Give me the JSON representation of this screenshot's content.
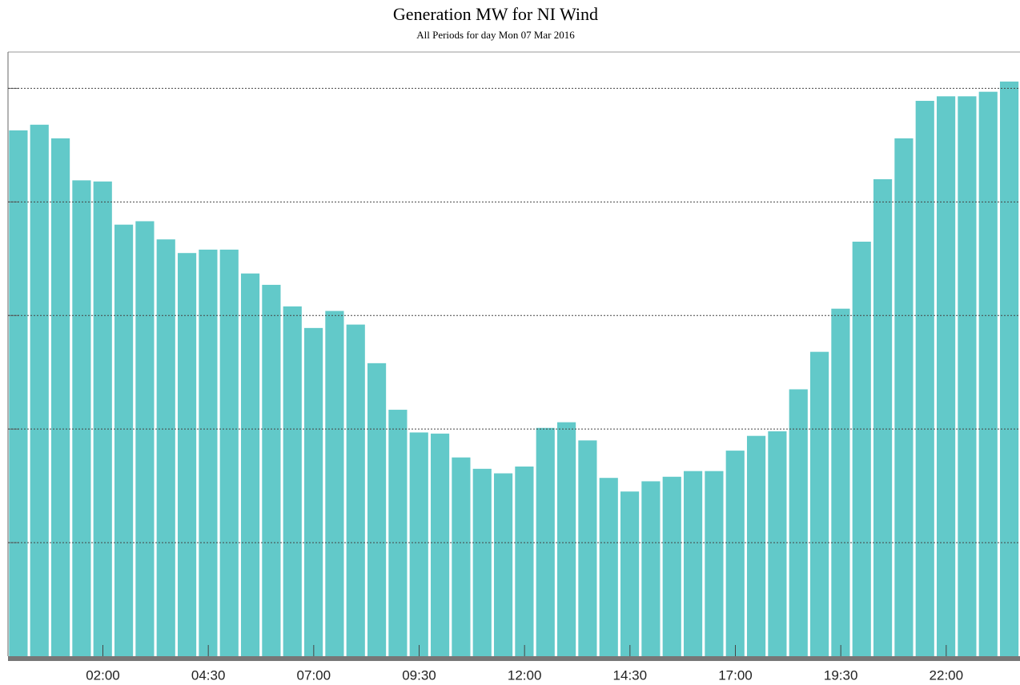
{
  "chart_data": {
    "type": "bar",
    "title": "Generation MW for NI Wind",
    "subtitle": "All Periods for day Mon 07 Mar 2016",
    "categories": [
      null,
      null,
      null,
      null,
      "02:00",
      null,
      null,
      null,
      null,
      "04:30",
      null,
      null,
      null,
      null,
      "07:00",
      null,
      null,
      null,
      null,
      "09:30",
      null,
      null,
      null,
      null,
      "12:00",
      null,
      null,
      null,
      null,
      "14:30",
      null,
      null,
      null,
      null,
      "17:00",
      null,
      null,
      null,
      null,
      "19:30",
      null,
      null,
      null,
      null,
      "22:00",
      null,
      null,
      null
    ],
    "values": [
      4.63,
      4.68,
      4.56,
      4.19,
      4.18,
      3.8,
      3.83,
      3.67,
      3.55,
      3.58,
      3.58,
      3.37,
      3.27,
      3.08,
      2.89,
      3.04,
      2.92,
      2.58,
      2.17,
      1.97,
      1.96,
      1.75,
      1.65,
      1.61,
      1.67,
      2.01,
      2.06,
      1.9,
      1.57,
      1.45,
      1.54,
      1.58,
      1.63,
      1.63,
      1.81,
      1.94,
      1.98,
      2.35,
      2.68,
      3.06,
      3.65,
      4.2,
      4.56,
      4.89,
      4.93,
      4.93,
      4.97,
      5.06
    ],
    "color": "#62c9c9",
    "ylim": [
      0,
      5.32
    ],
    "yticks": [
      1,
      2,
      3,
      4,
      5
    ],
    "grid": true
  }
}
